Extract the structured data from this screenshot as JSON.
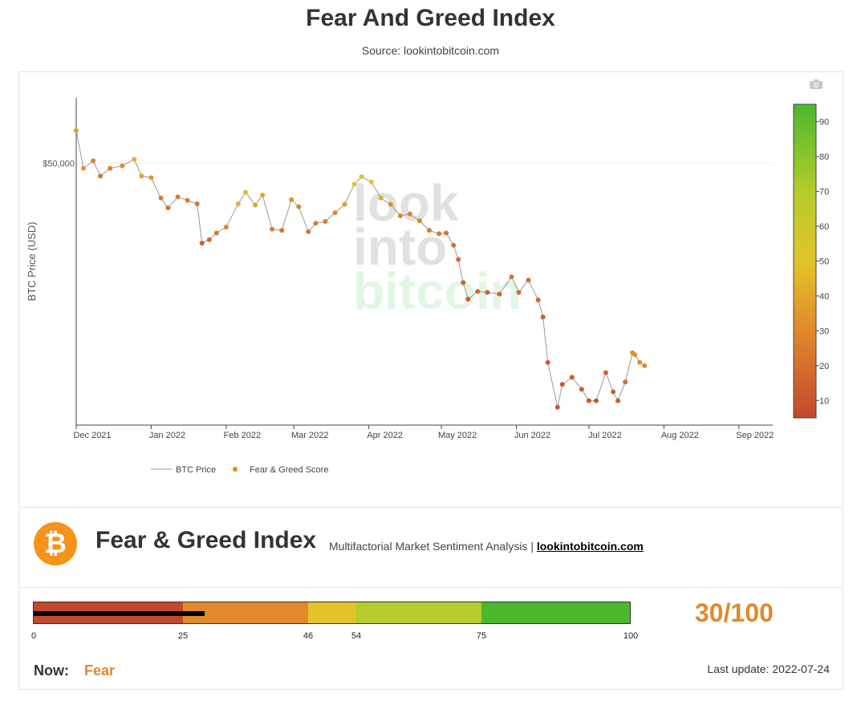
{
  "header": {
    "title": "Fear And Greed Index",
    "source": "Source: lookintobitcoin.com"
  },
  "colors": {
    "extreme_fear": "#c4482d",
    "fear": "#e08a2a",
    "neutral": "#e2c42a",
    "greed": "#b5cc2b",
    "extreme_greed": "#4cb82e",
    "line": "#999999"
  },
  "chart_data": {
    "type": "scatter",
    "title": "",
    "xlabel": "",
    "ylabel": "BTC Price (USD)",
    "y_scale": "log",
    "y_ticks": [
      "$50,000"
    ],
    "x_ticks": [
      "Dec 2021",
      "Jan 2022",
      "Feb 2022",
      "Mar 2022",
      "Apr 2022",
      "May 2022",
      "Jun 2022",
      "Jul 2022",
      "Aug 2022",
      "Sep 2022"
    ],
    "xlim": [
      "2021-12-01",
      "2022-09-15"
    ],
    "legend": [
      "BTC Price",
      "Fear & Greed Score"
    ],
    "legend_placement": "bottom-center",
    "colorbar": {
      "ticks": [
        10,
        20,
        30,
        40,
        50,
        60,
        70,
        80,
        90
      ],
      "range": [
        5,
        95
      ]
    },
    "watermark": "look into bitcoin",
    "series": [
      {
        "name": "BTC Price",
        "type": "line",
        "x": [
          "2021-12-01",
          "2021-12-04",
          "2021-12-08",
          "2021-12-11",
          "2021-12-15",
          "2021-12-20",
          "2021-12-25",
          "2021-12-28",
          "2022-01-01",
          "2022-01-05",
          "2022-01-08",
          "2022-01-12",
          "2022-01-16",
          "2022-01-20",
          "2022-01-22",
          "2022-01-25",
          "2022-01-28",
          "2022-02-01",
          "2022-02-06",
          "2022-02-09",
          "2022-02-13",
          "2022-02-16",
          "2022-02-20",
          "2022-02-24",
          "2022-02-28",
          "2022-03-03",
          "2022-03-07",
          "2022-03-10",
          "2022-03-14",
          "2022-03-18",
          "2022-03-22",
          "2022-03-26",
          "2022-03-29",
          "2022-04-02",
          "2022-04-06",
          "2022-04-10",
          "2022-04-14",
          "2022-04-18",
          "2022-04-22",
          "2022-04-26",
          "2022-04-30",
          "2022-05-03",
          "2022-05-06",
          "2022-05-08",
          "2022-05-10",
          "2022-05-12",
          "2022-05-16",
          "2022-05-20",
          "2022-05-25",
          "2022-05-30",
          "2022-06-02",
          "2022-06-06",
          "2022-06-10",
          "2022-06-12",
          "2022-06-14",
          "2022-06-18",
          "2022-06-20",
          "2022-06-24",
          "2022-06-28",
          "2022-07-01",
          "2022-07-04",
          "2022-07-08",
          "2022-07-11",
          "2022-07-13",
          "2022-07-16",
          "2022-07-19",
          "2022-07-20",
          "2022-07-22",
          "2022-07-24"
        ],
        "y": [
          57000,
          49000,
          50500,
          47500,
          49000,
          49500,
          50800,
          47500,
          47200,
          43500,
          41800,
          43700,
          43100,
          42500,
          36300,
          36800,
          37800,
          38700,
          42500,
          44500,
          42300,
          44000,
          38400,
          38200,
          43200,
          42000,
          38000,
          39300,
          39600,
          41000,
          42400,
          46000,
          47400,
          46400,
          43500,
          42400,
          40500,
          40800,
          39700,
          38200,
          37700,
          37800,
          36000,
          34000,
          31000,
          29000,
          29900,
          29800,
          29600,
          31700,
          29800,
          31300,
          28900,
          27000,
          22500,
          18800,
          20600,
          21200,
          20200,
          19300,
          19300,
          21600,
          20000,
          19300,
          20800,
          23400,
          23200,
          22500,
          22200
        ]
      },
      {
        "name": "Fear & Greed Score",
        "type": "markers",
        "x": [
          "2021-12-01",
          "2021-12-04",
          "2021-12-08",
          "2021-12-11",
          "2021-12-15",
          "2021-12-20",
          "2021-12-25",
          "2021-12-28",
          "2022-01-01",
          "2022-01-05",
          "2022-01-08",
          "2022-01-12",
          "2022-01-16",
          "2022-01-20",
          "2022-01-22",
          "2022-01-25",
          "2022-01-28",
          "2022-02-01",
          "2022-02-06",
          "2022-02-09",
          "2022-02-13",
          "2022-02-16",
          "2022-02-20",
          "2022-02-24",
          "2022-02-28",
          "2022-03-03",
          "2022-03-07",
          "2022-03-10",
          "2022-03-14",
          "2022-03-18",
          "2022-03-22",
          "2022-03-26",
          "2022-03-29",
          "2022-04-02",
          "2022-04-06",
          "2022-04-10",
          "2022-04-14",
          "2022-04-18",
          "2022-04-22",
          "2022-04-26",
          "2022-04-30",
          "2022-05-03",
          "2022-05-06",
          "2022-05-08",
          "2022-05-10",
          "2022-05-12",
          "2022-05-16",
          "2022-05-20",
          "2022-05-25",
          "2022-05-30",
          "2022-06-02",
          "2022-06-06",
          "2022-06-10",
          "2022-06-12",
          "2022-06-14",
          "2022-06-18",
          "2022-06-20",
          "2022-06-24",
          "2022-06-28",
          "2022-07-01",
          "2022-07-04",
          "2022-07-08",
          "2022-07-11",
          "2022-07-13",
          "2022-07-16",
          "2022-07-19",
          "2022-07-20",
          "2022-07-22",
          "2022-07-24"
        ],
        "values": [
          38,
          35,
          28,
          22,
          27,
          30,
          42,
          40,
          34,
          26,
          22,
          25,
          24,
          24,
          15,
          18,
          22,
          28,
          45,
          46,
          40,
          40,
          25,
          22,
          32,
          27,
          23,
          26,
          26,
          30,
          38,
          50,
          52,
          49,
          40,
          32,
          30,
          28,
          26,
          24,
          24,
          22,
          20,
          17,
          15,
          13,
          16,
          14,
          15,
          22,
          18,
          20,
          16,
          14,
          12,
          11,
          11,
          12,
          13,
          12,
          11,
          15,
          14,
          13,
          18,
          32,
          32,
          30,
          30
        ]
      }
    ]
  },
  "brand": {
    "title": "Fear & Greed Index",
    "subtitle": "Multifactorial Market Sentiment Analysis | ",
    "link": "lookintobitcoin.com",
    "logo_glyph": "₿"
  },
  "gauge": {
    "value": 30,
    "ticks": [
      "0",
      "25",
      "46",
      "54",
      "75",
      "100"
    ],
    "score_text": "30/100"
  },
  "status": {
    "now_label": "Now:",
    "now_value": "Fear",
    "last_update": "Last update: 2022-07-24"
  }
}
